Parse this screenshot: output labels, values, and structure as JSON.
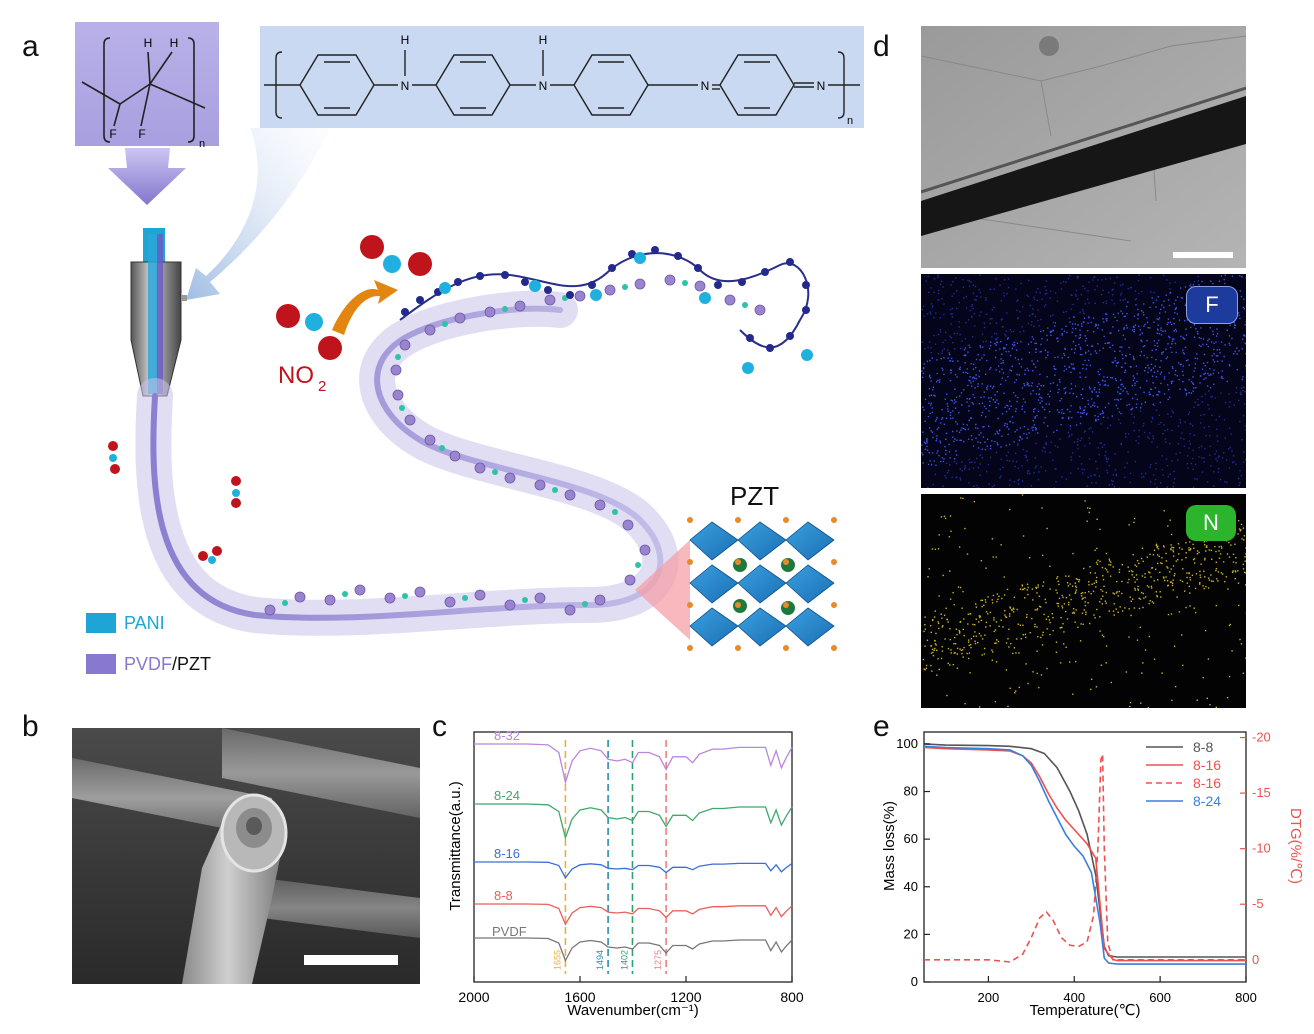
{
  "panels": {
    "a": {
      "letter": "a",
      "pvdf_formula": {
        "h1": "H",
        "h2": "H",
        "f1": "F",
        "f2": "F",
        "n": "n"
      },
      "pani_formula": {
        "h1": "H",
        "n1": "N",
        "h2": "H",
        "n2": "N",
        "n3": "N",
        "n4": "N",
        "n": "n"
      },
      "gas_label": "NO",
      "gas_subscript": "2",
      "pzt_label": "PZT",
      "legend": {
        "pani": "PANI",
        "pvdf": "PVDF",
        "pzt": "/PZT",
        "pani_color": "#1ea5d6",
        "pvdf_color": "#8878cf"
      }
    },
    "b": {
      "letter": "b"
    },
    "c": {
      "letter": "c"
    },
    "d": {
      "letter": "d",
      "map_f": "F",
      "map_n": "N",
      "map_f_color": "#1d3b9c",
      "map_n_color": "#2cb52c"
    },
    "e": {
      "letter": "e"
    }
  },
  "chart_data": [
    {
      "type": "line",
      "panel": "c",
      "xlabel": "Wavenumber(cm⁻¹)",
      "ylabel": "Transmittance(a.u.)",
      "xlim": [
        2000,
        800
      ],
      "xticks": [
        "2000",
        "1600",
        "1200",
        "800"
      ],
      "reference_lines": [
        {
          "value": 1655,
          "label": "1655",
          "color": "#e8b040"
        },
        {
          "value": 1494,
          "label": "1494",
          "color": "#2a8fb0"
        },
        {
          "value": 1402,
          "label": "1402",
          "color": "#2fa070"
        },
        {
          "value": 1275,
          "label": "1275",
          "color": "#e88080"
        }
      ],
      "series": [
        {
          "name": "8-32",
          "color": "#b985dd"
        },
        {
          "name": "8-24",
          "color": "#3fa86a"
        },
        {
          "name": "8-16",
          "color": "#3a6fd8"
        },
        {
          "name": "8-8",
          "color": "#e8605e"
        },
        {
          "name": "PVDF",
          "color": "#777777"
        }
      ],
      "shape": {
        "x": [
          2000,
          1900,
          1800,
          1720,
          1680,
          1655,
          1630,
          1600,
          1560,
          1520,
          1494,
          1460,
          1430,
          1402,
          1380,
          1340,
          1300,
          1275,
          1250,
          1200,
          1175,
          1150,
          1100,
          1060,
          1000,
          960,
          900,
          880,
          860,
          840,
          820,
          800
        ],
        "dip": [
          0,
          0,
          0,
          0.1,
          1,
          4.5,
          2,
          0.8,
          0.5,
          0.8,
          1.8,
          2,
          1.8,
          2.2,
          1,
          1,
          1.5,
          3,
          1.5,
          1.5,
          2.2,
          1.2,
          0.6,
          0.6,
          0.4,
          0.4,
          0.4,
          2.5,
          0.8,
          2.8,
          1.5,
          0.4
        ]
      }
    },
    {
      "type": "line",
      "panel": "e",
      "xlabel": "Temperature(℃)",
      "ylabel": "Mass loss(%)",
      "y2label": "DTG(%/℃)",
      "xlim": [
        50,
        800
      ],
      "ylim": [
        0,
        105
      ],
      "y2lim": [
        2,
        -20.5
      ],
      "xticks": [
        200,
        400,
        600,
        800
      ],
      "yticks": [
        0,
        20,
        40,
        60,
        80,
        100
      ],
      "y2ticks": [
        0,
        -5,
        -10,
        -15,
        -20
      ],
      "legend_position": "top-right",
      "series": [
        {
          "name": "8-8",
          "color": "#555555",
          "style": "solid",
          "x": [
            50,
            100,
            200,
            250,
            300,
            330,
            360,
            390,
            410,
            430,
            450,
            460,
            470,
            480,
            500,
            600,
            800
          ],
          "y": [
            100,
            99.5,
            99.3,
            99,
            98,
            96,
            90,
            80,
            72,
            62,
            45,
            30,
            15,
            11,
            10.5,
            10.5,
            10.5
          ]
        },
        {
          "name": "8-16",
          "color": "#f05050",
          "style": "solid",
          "x": [
            50,
            100,
            200,
            250,
            280,
            300,
            320,
            340,
            360,
            380,
            400,
            430,
            450,
            470,
            490,
            500,
            600,
            800
          ],
          "y": [
            98.5,
            98,
            97.5,
            97,
            95,
            92,
            86,
            79,
            73,
            68,
            64,
            58,
            52,
            14,
            9.5,
            9,
            9,
            9
          ]
        },
        {
          "name": "8-16",
          "color": "#f05050",
          "style": "dashed",
          "axis": "y2",
          "x": [
            50,
            200,
            250,
            280,
            300,
            320,
            335,
            350,
            370,
            390,
            410,
            430,
            445,
            455,
            462,
            466,
            470,
            478,
            490,
            520,
            600,
            800
          ],
          "y": [
            0,
            0,
            0.2,
            -0.5,
            -2,
            -3.8,
            -4.3,
            -3.6,
            -2,
            -1.3,
            -1.2,
            -1.6,
            -4,
            -10,
            -18,
            -18.5,
            -10,
            -1.5,
            0,
            0,
            0,
            0
          ]
        },
        {
          "name": "8-24",
          "color": "#3a7fe0",
          "style": "solid",
          "x": [
            50,
            100,
            200,
            250,
            280,
            300,
            320,
            340,
            360,
            380,
            400,
            420,
            440,
            460,
            470,
            480,
            500,
            600,
            800
          ],
          "y": [
            99,
            98.5,
            98,
            97.5,
            95,
            91,
            84,
            76,
            69,
            62,
            57,
            53,
            46,
            25,
            10,
            8,
            7.5,
            7.5,
            7.5
          ]
        }
      ]
    }
  ]
}
